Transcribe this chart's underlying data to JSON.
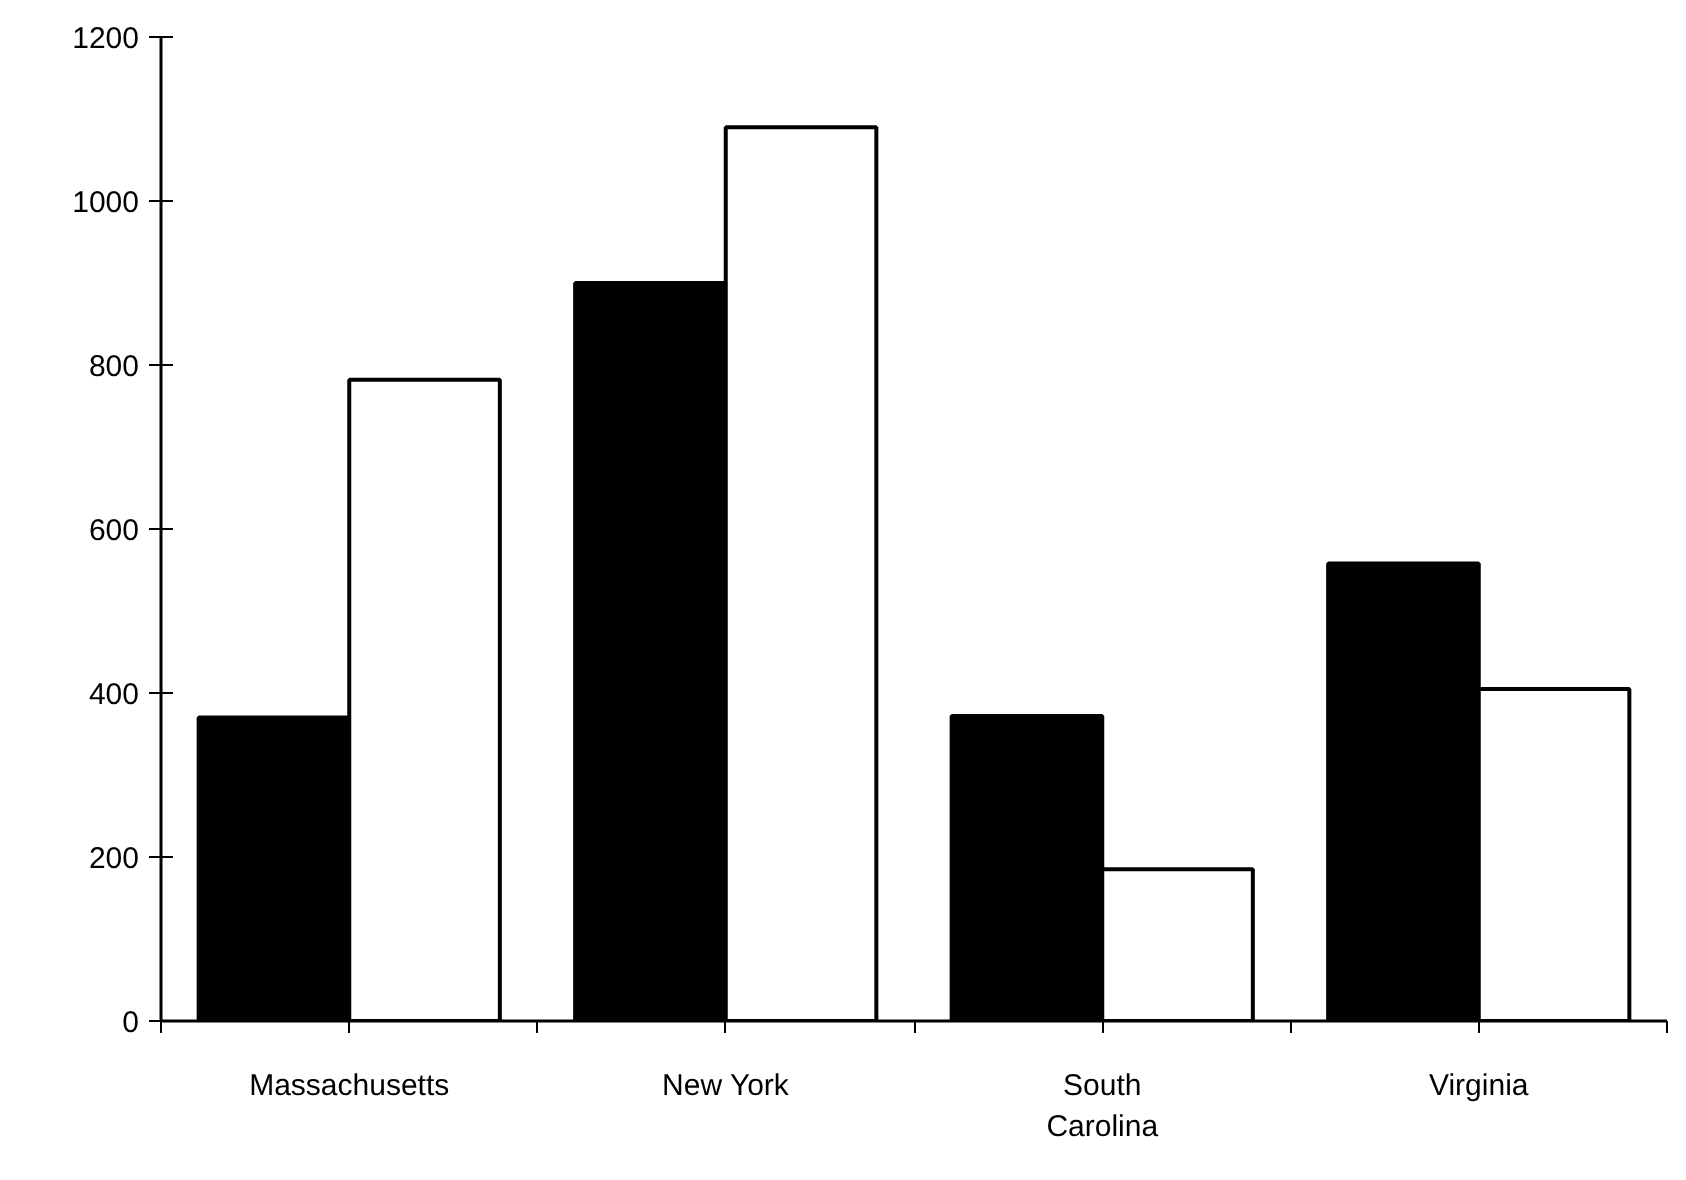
{
  "chart_data": {
    "type": "bar",
    "categories": [
      "Massachusetts",
      "New York",
      "South\nCarolina",
      "Virginia"
    ],
    "series": [
      {
        "color": "#000000",
        "values": [
          370,
          900,
          372,
          558
        ]
      },
      {
        "color": "#ffffff",
        "values": [
          782,
          1090,
          185,
          405
        ]
      }
    ],
    "ylim": [
      0,
      1200
    ],
    "yticks": [
      0,
      200,
      400,
      600,
      800,
      1000,
      1200
    ]
  }
}
